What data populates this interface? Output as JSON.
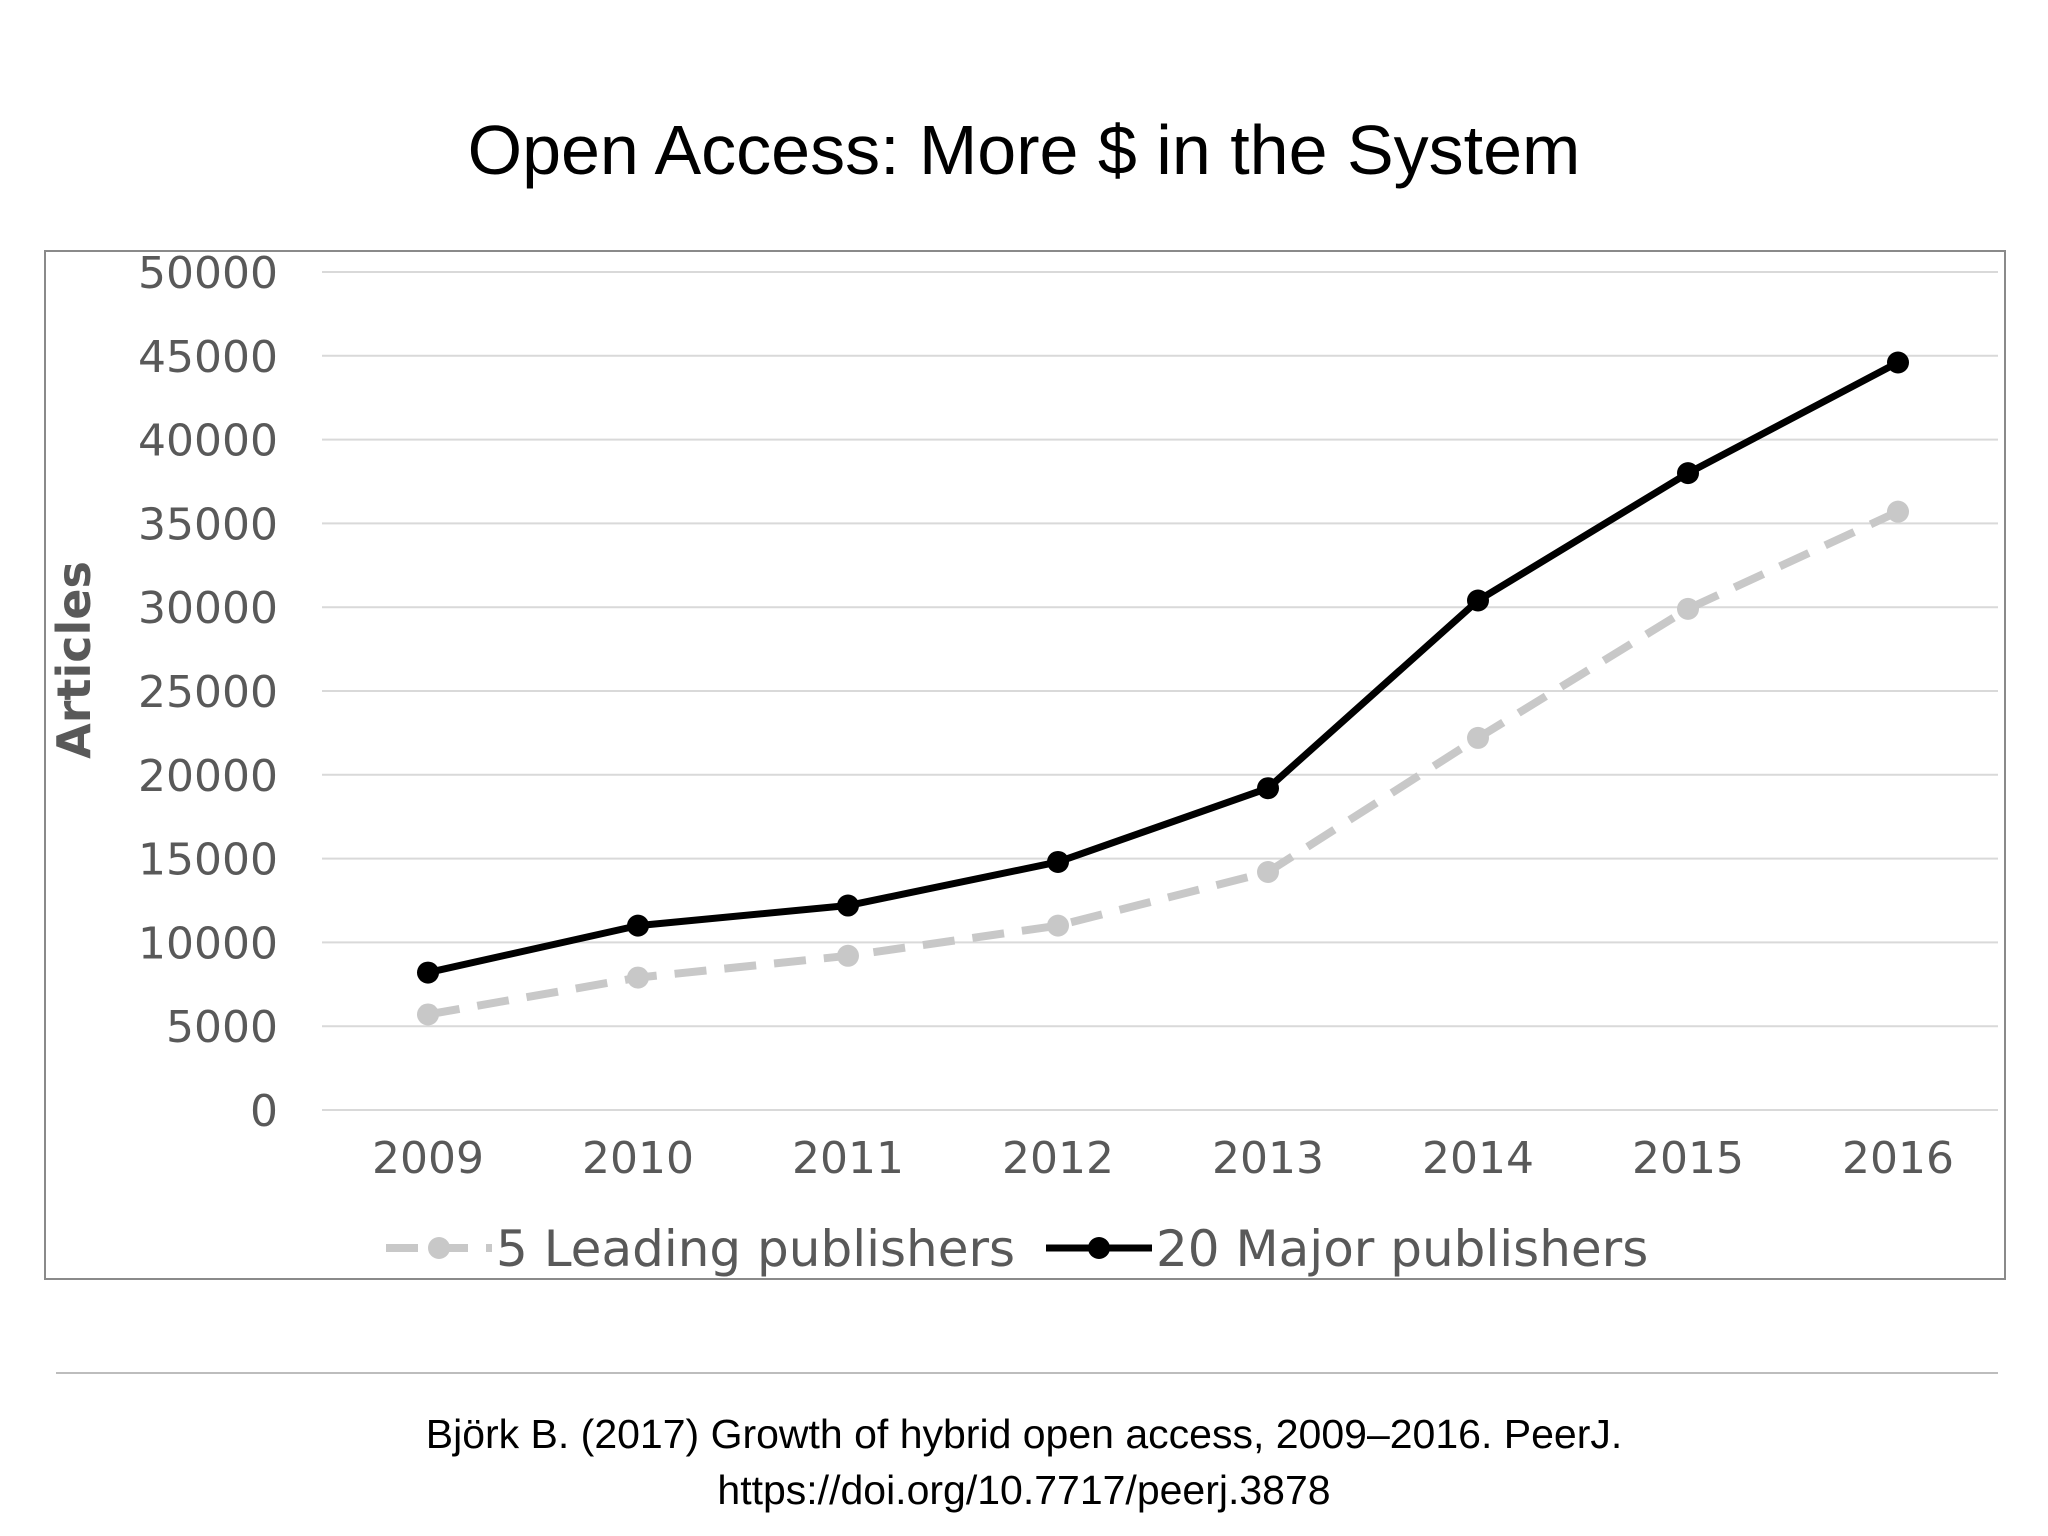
{
  "slide": {
    "title": "Open Access: More $ in the System",
    "citation_line1": "Björk B. (2017) Growth of hybrid open access, 2009–2016. PeerJ.",
    "citation_line2": "https://doi.org/10.7717/peerj.3878"
  },
  "chart_data": {
    "type": "line",
    "title": "",
    "xlabel": "",
    "ylabel": "Articles",
    "categories": [
      "2009",
      "2010",
      "2011",
      "2012",
      "2013",
      "2014",
      "2015",
      "2016"
    ],
    "ylim": [
      0,
      50000
    ],
    "yticks": [
      0,
      5000,
      10000,
      15000,
      20000,
      25000,
      30000,
      35000,
      40000,
      45000,
      50000
    ],
    "ytick_labels": [
      "0",
      "5000",
      "10000",
      "15000",
      "20000",
      "25000",
      "30000",
      "35000",
      "40000",
      "45000",
      "50000"
    ],
    "grid": "horizontal",
    "legend_position": "bottom",
    "series": [
      {
        "name": "5 Leading publishers",
        "values": [
          5700,
          7900,
          9200,
          11000,
          14200,
          22200,
          29900,
          35700
        ],
        "color": "#c8c8c8",
        "line_style": "dashed",
        "marker": "circle"
      },
      {
        "name": "20 Major publishers",
        "values": [
          8200,
          11000,
          12200,
          14800,
          19200,
          30400,
          38000,
          44600
        ],
        "color": "#000000",
        "line_style": "solid",
        "marker": "circle"
      }
    ]
  }
}
